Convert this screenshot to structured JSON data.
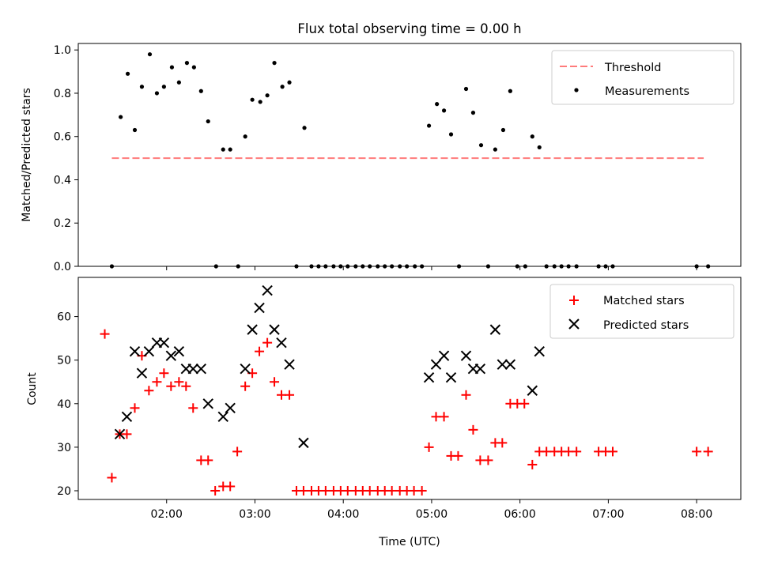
{
  "chart_data": [
    {
      "type": "scatter",
      "title": "Flux total observing time = 0.00 h",
      "xlabel": "",
      "ylabel": "Matched/Predicted stars",
      "xlim": [
        1.0,
        8.5
      ],
      "ylim": [
        0,
        1.03
      ],
      "yticks": [
        0.0,
        0.2,
        0.4,
        0.6,
        0.8,
        1.0
      ],
      "ytick_labels": [
        "0.0",
        "0.2",
        "0.4",
        "0.6",
        "0.8",
        "1.0"
      ],
      "xticks": [
        2,
        3,
        4,
        5,
        6,
        7,
        8
      ],
      "show_xtick_labels": false,
      "legend": {
        "position": "top-right",
        "entries": [
          "Threshold",
          "Measurements"
        ]
      },
      "grid": false,
      "series": [
        {
          "name": "Threshold",
          "style": "dashed-line",
          "color": "#ff7b7b",
          "x": [
            1.38,
            8.08
          ],
          "y": [
            0.5,
            0.5
          ]
        },
        {
          "name": "Measurements",
          "style": "dot",
          "color": "#000000",
          "x": [
            1.38,
            1.48,
            1.56,
            1.64,
            1.72,
            1.81,
            1.89,
            1.97,
            2.06,
            2.14,
            2.23,
            2.31,
            2.39,
            2.47,
            2.56,
            2.64,
            2.72,
            2.81,
            2.89,
            2.97,
            3.06,
            3.14,
            3.22,
            3.31,
            3.39,
            3.47,
            3.56,
            3.64,
            3.72,
            3.8,
            3.89,
            3.97,
            4.05,
            4.14,
            4.22,
            4.3,
            4.39,
            4.47,
            4.55,
            4.64,
            4.72,
            4.81,
            4.89,
            4.97,
            5.06,
            5.14,
            5.22,
            5.31,
            5.39,
            5.47,
            5.56,
            5.64,
            5.72,
            5.81,
            5.89,
            5.97,
            6.06,
            6.14,
            6.22,
            6.3,
            6.39,
            6.47,
            6.55,
            6.64,
            6.89,
            6.97,
            7.05,
            8.0,
            8.13
          ],
          "y": [
            0.0,
            0.69,
            0.89,
            0.63,
            0.83,
            0.98,
            0.8,
            0.83,
            0.92,
            0.85,
            0.94,
            0.92,
            0.81,
            0.67,
            0.0,
            0.54,
            0.54,
            0.0,
            0.6,
            0.77,
            0.76,
            0.79,
            0.94,
            0.83,
            0.85,
            0.0,
            0.64,
            0.0,
            0.0,
            0.0,
            0.0,
            0.0,
            0.0,
            0.0,
            0.0,
            0.0,
            0.0,
            0.0,
            0.0,
            0.0,
            0.0,
            0.0,
            0.0,
            0.65,
            0.75,
            0.72,
            0.61,
            0.0,
            0.82,
            0.71,
            0.56,
            0.0,
            0.54,
            0.63,
            0.81,
            0.0,
            0.0,
            0.6,
            0.55,
            0.0,
            0.0,
            0.0,
            0.0,
            0.0,
            0.0,
            0.0,
            0.0,
            0.0,
            0.0
          ]
        }
      ]
    },
    {
      "type": "scatter",
      "title": "",
      "xlabel": "Time (UTC)",
      "ylabel": "Count",
      "xlim": [
        1.0,
        8.5
      ],
      "ylim": [
        18,
        69
      ],
      "yticks": [
        20,
        30,
        40,
        50,
        60
      ],
      "ytick_labels": [
        "20",
        "30",
        "40",
        "50",
        "60"
      ],
      "xticks": [
        2,
        3,
        4,
        5,
        6,
        7,
        8
      ],
      "xtick_labels": [
        "02:00",
        "03:00",
        "04:00",
        "05:00",
        "06:00",
        "07:00",
        "08:00"
      ],
      "legend": {
        "position": "top-right",
        "entries": [
          "Matched stars",
          "Predicted stars"
        ]
      },
      "grid": false,
      "series": [
        {
          "name": "Matched stars",
          "marker": "plus",
          "color": "#ff0000",
          "x": [
            1.3,
            1.38,
            1.47,
            1.55,
            1.64,
            1.72,
            1.8,
            1.89,
            1.97,
            2.05,
            2.14,
            2.22,
            2.3,
            2.39,
            2.47,
            2.55,
            2.64,
            2.72,
            2.8,
            2.89,
            2.97,
            3.05,
            3.14,
            3.22,
            3.3,
            3.39,
            3.47,
            3.55,
            3.64,
            3.72,
            3.8,
            3.89,
            3.97,
            4.05,
            4.14,
            4.22,
            4.3,
            4.39,
            4.47,
            4.55,
            4.64,
            4.72,
            4.8,
            4.89,
            4.97,
            5.05,
            5.14,
            5.22,
            5.3,
            5.39,
            5.47,
            5.55,
            5.64,
            5.72,
            5.8,
            5.89,
            5.97,
            6.05,
            6.14,
            6.22,
            6.3,
            6.39,
            6.47,
            6.55,
            6.64,
            6.89,
            6.97,
            7.05,
            8.0,
            8.13
          ],
          "y": [
            56,
            23,
            33,
            33,
            39,
            51,
            43,
            45,
            47,
            44,
            45,
            44,
            39,
            27,
            27,
            20,
            21,
            21,
            29,
            44,
            47,
            52,
            54,
            45,
            42,
            42,
            20,
            20,
            20,
            20,
            20,
            20,
            20,
            20,
            20,
            20,
            20,
            20,
            20,
            20,
            20,
            20,
            20,
            20,
            30,
            37,
            37,
            28,
            28,
            42,
            34,
            27,
            27,
            31,
            31,
            40,
            40,
            40,
            26,
            29,
            29,
            29,
            29,
            29,
            29,
            29,
            29,
            29,
            29,
            29
          ],
          "x_offsets_note": ""
        },
        {
          "name": "Predicted stars",
          "marker": "x",
          "color": "#000000",
          "x": [
            1.47,
            1.55,
            1.64,
            1.72,
            1.8,
            1.89,
            1.97,
            2.05,
            2.14,
            2.22,
            2.3,
            2.39,
            2.47,
            2.64,
            2.72,
            2.89,
            2.97,
            3.05,
            3.14,
            3.22,
            3.3,
            3.39,
            3.55,
            4.97,
            5.05,
            5.14,
            5.22,
            5.39,
            5.47,
            5.55,
            5.72,
            5.8,
            5.89,
            6.14,
            6.22
          ],
          "y": [
            33,
            37,
            52,
            47,
            52,
            54,
            54,
            51,
            52,
            48,
            48,
            48,
            40,
            37,
            39,
            48,
            57,
            62,
            66,
            57,
            54,
            49,
            31,
            46,
            49,
            51,
            46,
            51,
            48,
            48,
            57,
            49,
            49,
            43,
            52
          ]
        }
      ]
    }
  ]
}
